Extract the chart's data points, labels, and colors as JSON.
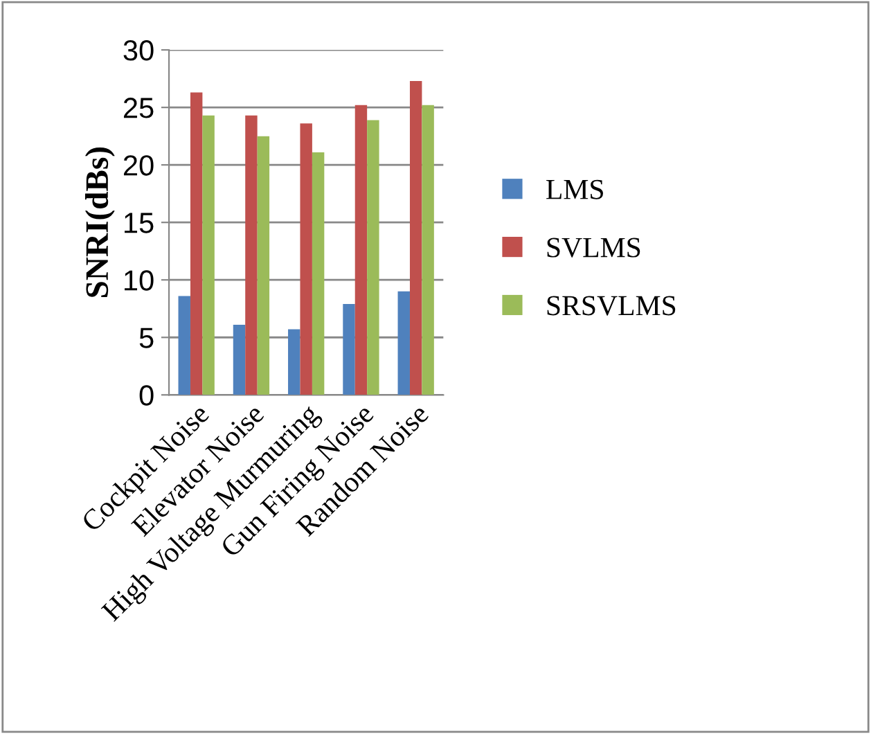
{
  "chart_data": {
    "type": "bar",
    "ylabel": "SNRI(dBs)",
    "categories": [
      "Cockpit Noise",
      "Elevator Noise",
      "High Voltage Murmuring",
      "Gun Firing Noise",
      "Random Noise"
    ],
    "series": [
      {
        "name": "LMS",
        "color": "#4f81bd",
        "values": [
          8.6,
          6.1,
          5.7,
          7.9,
          9.0
        ]
      },
      {
        "name": "SVLMS",
        "color": "#c0504d",
        "values": [
          26.3,
          24.3,
          23.6,
          25.2,
          27.3
        ]
      },
      {
        "name": "SRSVLMS",
        "color": "#9bbb59",
        "values": [
          24.3,
          22.5,
          21.1,
          23.9,
          25.2
        ]
      }
    ],
    "ylim": [
      0,
      30
    ],
    "yticks": [
      0,
      5,
      10,
      15,
      20,
      25,
      30
    ],
    "grid": "y",
    "legend": "right"
  }
}
